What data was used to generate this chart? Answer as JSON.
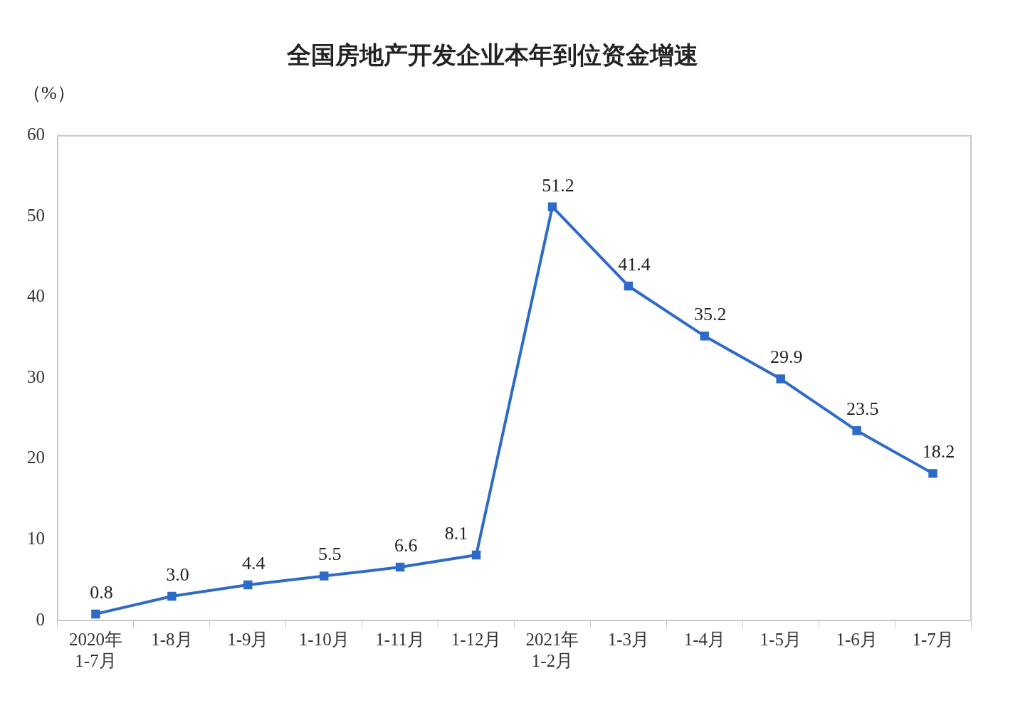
{
  "chart_data": {
    "type": "line",
    "title": "全国房地产开发企业本年到位资金增速",
    "ylabel": "（%）",
    "categories": [
      "2020年\n1-7月",
      "1-8月",
      "1-9月",
      "1-10月",
      "1-11月",
      "1-12月",
      "2021年\n1-2月",
      "1-3月",
      "1-4月",
      "1-5月",
      "1-6月",
      "1-7月"
    ],
    "series": [
      {
        "color": "#2e6bc6",
        "values": [
          0.8,
          3.0,
          4.4,
          5.5,
          6.6,
          8.1,
          51.2,
          41.4,
          35.2,
          29.9,
          23.5,
          18.2
        ],
        "value_labels": [
          "0.8",
          "3.0",
          "4.4",
          "5.5",
          "6.6",
          "8.1",
          "51.2",
          "41.4",
          "35.2",
          "29.9",
          "23.5",
          "18.2"
        ]
      }
    ],
    "ylim": [
      0,
      60
    ],
    "yticks": [
      0,
      10,
      20,
      30,
      40,
      50,
      60
    ],
    "grid": false,
    "legend": false,
    "marker": "square",
    "line_style": "solid"
  }
}
